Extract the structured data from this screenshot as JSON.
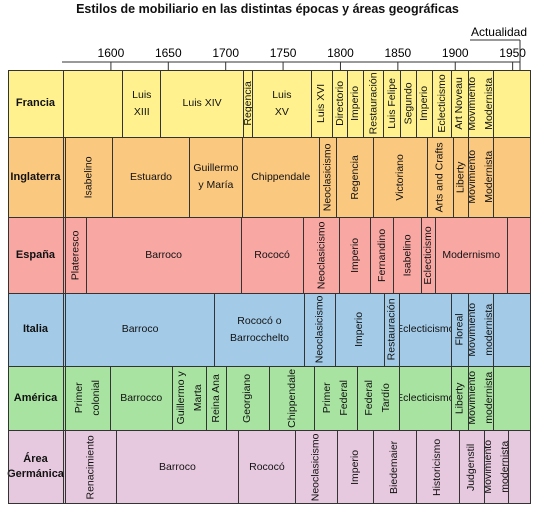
{
  "title": "Estilos de mobiliario en las distintas épocas y áreas geográficas",
  "axis": {
    "start_year": 1560,
    "end_year": 1966,
    "ticks": [
      1600,
      1650,
      1700,
      1750,
      1800,
      1850,
      1900,
      1950
    ],
    "end_label": "Actualidad"
  },
  "rows": [
    {
      "label": "Francia",
      "color": "#fff28e",
      "segments": [
        {
          "text": "Luis\nXIII",
          "start": 1610,
          "end": 1643,
          "vertical": false
        },
        {
          "text": "Luis XIV",
          "start": 1643,
          "end": 1715,
          "vertical": false
        },
        {
          "text": "Regencia",
          "start": 1715,
          "end": 1723,
          "vertical": true
        },
        {
          "text": "Luis\nXV",
          "start": 1723,
          "end": 1774,
          "vertical": false
        },
        {
          "text": "Luis XVI",
          "start": 1774,
          "end": 1793,
          "vertical": true
        },
        {
          "text": "Directorio",
          "start": 1793,
          "end": 1806,
          "vertical": true
        },
        {
          "text": "Imperio",
          "start": 1806,
          "end": 1820,
          "vertical": true
        },
        {
          "text": "Restauración",
          "start": 1820,
          "end": 1837,
          "vertical": true
        },
        {
          "text": "Luis Felipe",
          "start": 1837,
          "end": 1852,
          "vertical": true
        },
        {
          "text": "Segundo",
          "start": 1852,
          "end": 1866,
          "vertical": true
        },
        {
          "text": "Imperio",
          "start": 1866,
          "end": 1880,
          "vertical": true
        },
        {
          "text": "Eclecticismo",
          "start": 1880,
          "end": 1896,
          "vertical": true
        },
        {
          "text": "Art Noveau",
          "start": 1896,
          "end": 1911,
          "vertical": true
        },
        {
          "text": "Movimiento\nModernista",
          "start": 1911,
          "end": 1933,
          "vertical": true
        },
        {
          "text": "",
          "start": 1933,
          "end": 1966,
          "vertical": false
        }
      ]
    },
    {
      "label": "Inglaterra",
      "color": "#fbc87f",
      "segments": [
        {
          "text": "Isabelino",
          "start": 1560,
          "end": 1601,
          "vertical": true
        },
        {
          "text": "Estuardo",
          "start": 1601,
          "end": 1668,
          "vertical": false
        },
        {
          "text": "Guillermo\ny María",
          "start": 1668,
          "end": 1714,
          "vertical": false
        },
        {
          "text": "Chippendale",
          "start": 1714,
          "end": 1781,
          "vertical": false
        },
        {
          "text": "Neoclasicismo",
          "start": 1781,
          "end": 1796,
          "vertical": true
        },
        {
          "text": "Regencia",
          "start": 1796,
          "end": 1828,
          "vertical": true
        },
        {
          "text": "Victoriano",
          "start": 1828,
          "end": 1875,
          "vertical": true
        },
        {
          "text": "Arts and Crafts",
          "start": 1875,
          "end": 1898,
          "vertical": true
        },
        {
          "text": "Liberty",
          "start": 1898,
          "end": 1911,
          "vertical": true
        },
        {
          "text": "Movimiento\nModernista",
          "start": 1911,
          "end": 1933,
          "vertical": true
        },
        {
          "text": "",
          "start": 1933,
          "end": 1966,
          "vertical": false
        }
      ]
    },
    {
      "label": "España",
      "color": "#f8a7a3",
      "segments": [
        {
          "text": "Plateresco",
          "start": 1560,
          "end": 1578,
          "vertical": true
        },
        {
          "text": "Barroco",
          "start": 1578,
          "end": 1713,
          "vertical": false
        },
        {
          "text": "Rococó",
          "start": 1713,
          "end": 1767,
          "vertical": false
        },
        {
          "text": "Neoclasicismo",
          "start": 1767,
          "end": 1799,
          "vertical": true
        },
        {
          "text": "Imperio",
          "start": 1799,
          "end": 1826,
          "vertical": true
        },
        {
          "text": "Fernandino",
          "start": 1826,
          "end": 1846,
          "vertical": true
        },
        {
          "text": "Isabelino",
          "start": 1846,
          "end": 1870,
          "vertical": true
        },
        {
          "text": "Eclecticismo",
          "start": 1870,
          "end": 1882,
          "vertical": true
        },
        {
          "text": "Modernismo",
          "start": 1882,
          "end": 1945,
          "vertical": false
        },
        {
          "text": "",
          "start": 1945,
          "end": 1966,
          "vertical": false
        }
      ]
    },
    {
      "label": "Italia",
      "color": "#a3cbe8",
      "segments": [
        {
          "text": "Barroco",
          "start": 1560,
          "end": 1690,
          "vertical": false
        },
        {
          "text": "Rococó o\nBarrocchelto",
          "start": 1690,
          "end": 1768,
          "vertical": false
        },
        {
          "text": "Neoclasicismo",
          "start": 1768,
          "end": 1795,
          "vertical": true
        },
        {
          "text": "Imperio",
          "start": 1795,
          "end": 1838,
          "vertical": true
        },
        {
          "text": "Restauración",
          "start": 1838,
          "end": 1851,
          "vertical": true
        },
        {
          "text": "Eclecticismo",
          "start": 1851,
          "end": 1896,
          "vertical": false
        },
        {
          "text": "Floreal",
          "start": 1896,
          "end": 1911,
          "vertical": true
        },
        {
          "text": "Movimiento\nmodernista",
          "start": 1911,
          "end": 1933,
          "vertical": true
        },
        {
          "text": "",
          "start": 1933,
          "end": 1966,
          "vertical": false
        }
      ]
    },
    {
      "label": "América",
      "color": "#a8e3a1",
      "segments": [
        {
          "text": "Primer\ncolonial",
          "start": 1560,
          "end": 1599,
          "vertical": true
        },
        {
          "text": "Barrocco",
          "start": 1599,
          "end": 1653,
          "vertical": false
        },
        {
          "text": "Guillermo y\nMarta",
          "start": 1653,
          "end": 1683,
          "vertical": true
        },
        {
          "text": "Reina Ana",
          "start": 1683,
          "end": 1700,
          "vertical": true
        },
        {
          "text": "Georgiano",
          "start": 1700,
          "end": 1738,
          "vertical": true
        },
        {
          "text": "Chippendale",
          "start": 1738,
          "end": 1777,
          "vertical": true
        },
        {
          "text": "Primer\nFederal",
          "start": 1777,
          "end": 1814,
          "vertical": true
        },
        {
          "text": "Federal\nTardío",
          "start": 1814,
          "end": 1851,
          "vertical": true
        },
        {
          "text": "Eclecticismo",
          "start": 1851,
          "end": 1896,
          "vertical": false
        },
        {
          "text": "Liberty",
          "start": 1896,
          "end": 1911,
          "vertical": true
        },
        {
          "text": "Movimiento\nmodernista",
          "start": 1911,
          "end": 1933,
          "vertical": true
        },
        {
          "text": "",
          "start": 1933,
          "end": 1966,
          "vertical": false
        }
      ]
    },
    {
      "label": "Área\nGermánica",
      "color": "#e7c9df",
      "segments": [
        {
          "text": "Renacimiento",
          "start": 1560,
          "end": 1604,
          "vertical": true
        },
        {
          "text": "Barroco",
          "start": 1604,
          "end": 1711,
          "vertical": false
        },
        {
          "text": "Rococó",
          "start": 1711,
          "end": 1760,
          "vertical": false
        },
        {
          "text": "Neoclasicismo",
          "start": 1760,
          "end": 1797,
          "vertical": true
        },
        {
          "text": "Imperio",
          "start": 1797,
          "end": 1828,
          "vertical": true
        },
        {
          "text": "Biedemaier",
          "start": 1828,
          "end": 1866,
          "vertical": true
        },
        {
          "text": "Historicismo",
          "start": 1866,
          "end": 1903,
          "vertical": true
        },
        {
          "text": "Judgenstil",
          "start": 1903,
          "end": 1925,
          "vertical": true
        },
        {
          "text": "Movimiento\nmodernista",
          "start": 1925,
          "end": 1946,
          "vertical": true
        },
        {
          "text": "",
          "start": 1946,
          "end": 1966,
          "vertical": false
        }
      ]
    }
  ]
}
